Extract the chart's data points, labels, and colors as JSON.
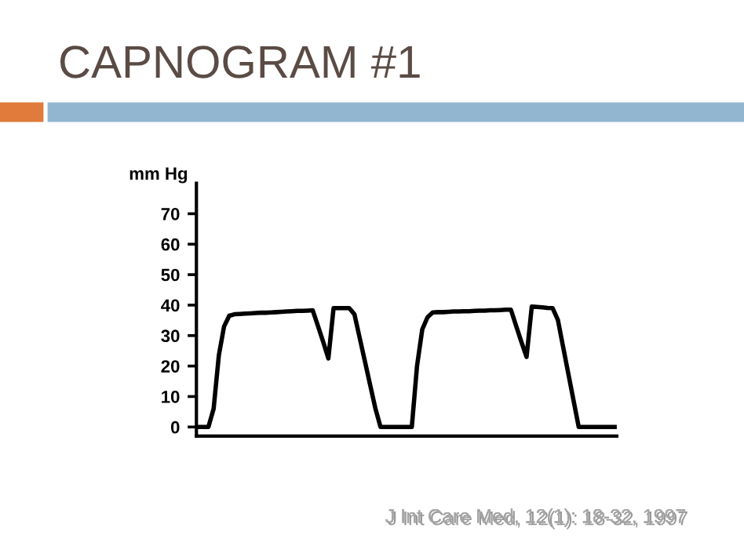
{
  "chart_data": {
    "type": "line",
    "title": "CAPNOGRAM #1",
    "ylabel": "mm Hg",
    "categories": [
      null,
      null,
      null,
      null,
      null,
      null,
      null,
      null,
      null,
      null,
      null,
      null,
      null,
      null,
      null,
      null,
      null,
      null,
      null,
      null,
      null,
      null,
      null,
      null,
      null,
      null,
      null,
      null,
      null,
      null,
      null,
      null,
      null,
      null,
      null,
      null,
      null,
      null,
      null,
      null,
      null,
      null,
      null,
      null,
      null,
      null,
      null,
      null,
      null,
      null,
      null,
      null,
      null,
      null,
      null,
      null,
      null,
      null,
      null,
      null,
      null,
      null,
      null,
      null,
      null,
      null,
      null,
      null,
      null,
      null,
      null,
      null,
      null,
      null,
      null,
      null,
      null,
      null,
      null,
      null,
      null
    ],
    "series": [
      {
        "color": "#000000",
        "values": [
          0,
          0,
          0,
          6,
          23.5,
          33,
          36.5,
          37,
          37.1,
          37.2,
          37.3,
          37.4,
          37.5,
          37.5,
          37.6,
          37.7,
          37.8,
          37.9,
          38,
          38.1,
          38.1,
          38.2,
          38.3,
          33.2,
          28,
          22.5,
          39,
          39,
          39,
          39,
          37,
          29.3,
          21.6,
          13.9,
          6.2,
          0,
          0,
          0,
          0,
          0,
          0,
          0,
          20,
          32,
          36,
          37.6,
          37.7,
          37.7,
          37.8,
          37.9,
          37.9,
          38,
          38,
          38.1,
          38.2,
          38.2,
          38.3,
          38.3,
          38.4,
          38.5,
          38.5,
          33.2,
          28,
          23,
          39.5,
          39.4,
          39.3,
          39.1,
          39,
          35.2,
          26.4,
          17.6,
          8.8,
          0,
          0,
          0,
          0,
          0,
          0,
          0,
          0
        ]
      }
    ],
    "ylim": [
      -3,
      80
    ],
    "yticks": [
      0,
      10,
      20,
      30,
      40,
      50,
      60,
      70
    ],
    "tick_labels": "y",
    "grid": false,
    "legend": false,
    "marker": "none",
    "line_style": "solid",
    "annotations": [
      "J Int Care Med, 12(1): 18-32, 1997"
    ]
  }
}
